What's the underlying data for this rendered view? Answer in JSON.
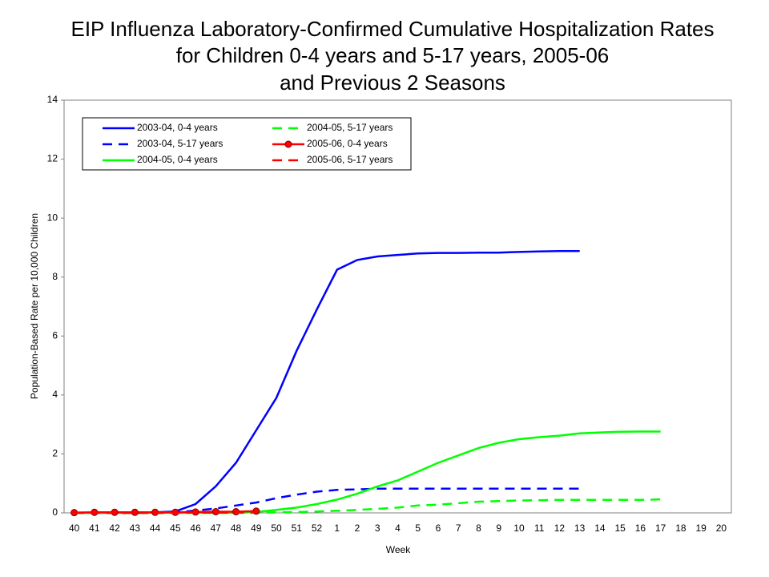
{
  "chart_data": {
    "type": "line",
    "title": [
      "EIP Influenza Laboratory-Confirmed Cumulative Hospitalization Rates",
      "for Children 0-4 years and 5-17 years, 2005-06",
      "and Previous 2 Seasons"
    ],
    "x_label": "Week",
    "y_label": "Population-Based Rate per 10,000 Children",
    "categories": [
      "40",
      "41",
      "42",
      "43",
      "44",
      "45",
      "46",
      "47",
      "48",
      "49",
      "50",
      "51",
      "52",
      "1",
      "2",
      "3",
      "4",
      "5",
      "6",
      "7",
      "8",
      "9",
      "10",
      "11",
      "12",
      "13",
      "14",
      "15",
      "16",
      "17",
      "18",
      "19",
      "20"
    ],
    "ylim": [
      0,
      14
    ],
    "yticks": [
      0,
      2,
      4,
      6,
      8,
      10,
      12,
      14
    ],
    "series": [
      {
        "name": "2003-04, 0-4 years",
        "color": "#0000ff",
        "dash": false,
        "marker": false,
        "values": [
          0,
          0,
          0,
          0,
          0.02,
          0.05,
          0.3,
          0.9,
          1.7,
          2.8,
          3.9,
          5.5,
          6.9,
          8.25,
          8.58,
          8.7,
          8.75,
          8.8,
          8.82,
          8.82,
          8.83,
          8.83,
          8.85,
          8.87,
          8.88,
          8.88,
          null,
          null,
          null,
          null,
          null,
          null,
          null
        ]
      },
      {
        "name": "2003-04, 5-17 years",
        "color": "#0000ff",
        "dash": true,
        "marker": false,
        "values": [
          0,
          0,
          0,
          0,
          0,
          0.02,
          0.08,
          0.15,
          0.25,
          0.35,
          0.5,
          0.62,
          0.72,
          0.78,
          0.8,
          0.82,
          0.82,
          0.82,
          0.82,
          0.82,
          0.82,
          0.82,
          0.82,
          0.82,
          0.82,
          0.82,
          null,
          null,
          null,
          null,
          null,
          null,
          null
        ]
      },
      {
        "name": "2004-05, 0-4 years",
        "color": "#00ff00",
        "dash": false,
        "marker": false,
        "values": [
          0,
          0,
          0,
          0,
          0,
          0,
          0,
          0,
          0,
          0.03,
          0.1,
          0.18,
          0.3,
          0.45,
          0.65,
          0.9,
          1.1,
          1.4,
          1.7,
          1.95,
          2.2,
          2.38,
          2.5,
          2.57,
          2.62,
          2.7,
          2.73,
          2.75,
          2.76,
          2.76,
          null,
          null,
          null
        ]
      },
      {
        "name": "2004-05, 5-17 years",
        "color": "#00ff00",
        "dash": true,
        "marker": false,
        "values": [
          0,
          0,
          0,
          0,
          0,
          0,
          0,
          0,
          0,
          0,
          0.02,
          0.03,
          0.05,
          0.07,
          0.1,
          0.14,
          0.18,
          0.25,
          0.28,
          0.33,
          0.38,
          0.4,
          0.42,
          0.43,
          0.44,
          0.44,
          0.44,
          0.44,
          0.44,
          0.46,
          null,
          null,
          null
        ]
      },
      {
        "name": "2005-06, 0-4 years",
        "color": "#ff0000",
        "dash": false,
        "marker": true,
        "values": [
          0.01,
          0.02,
          0.02,
          0.02,
          0.02,
          0.02,
          0.03,
          0.04,
          0.04,
          0.06,
          null,
          null,
          null,
          null,
          null,
          null,
          null,
          null,
          null,
          null,
          null,
          null,
          null,
          null,
          null,
          null,
          null,
          null,
          null,
          null,
          null,
          null,
          null
        ]
      },
      {
        "name": "2005-06, 5-17 years",
        "color": "#ff0000",
        "dash": true,
        "marker": false,
        "values": [
          0,
          0,
          0,
          0,
          0,
          0,
          0.01,
          0.01,
          0.01,
          0.02,
          null,
          null,
          null,
          null,
          null,
          null,
          null,
          null,
          null,
          null,
          null,
          null,
          null,
          null,
          null,
          null,
          null,
          null,
          null,
          null,
          null,
          null,
          null
        ]
      }
    ]
  }
}
